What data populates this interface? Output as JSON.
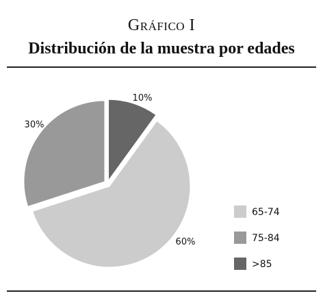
{
  "figure": {
    "caption": "Gráfico I",
    "title": "Distribución de la muestra por edades"
  },
  "chart_data": {
    "type": "pie",
    "title": "Distribución de la muestra por edades",
    "slices": [
      {
        "label": "65-74",
        "value": 60,
        "value_label": "60%",
        "color": "#cccccc"
      },
      {
        "label": "75-84",
        "value": 30,
        "value_label": "30%",
        "color": "#999999"
      },
      {
        "label": ">85",
        "value": 10,
        "value_label": "10%",
        "color": "#666666"
      }
    ],
    "exploded": true,
    "legend_position": "right"
  }
}
